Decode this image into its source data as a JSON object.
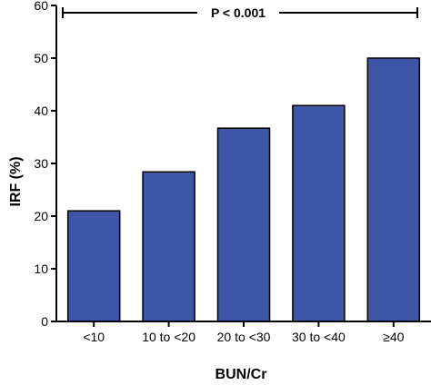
{
  "chart_data": {
    "type": "bar",
    "categories": [
      "<10",
      "10 to <20",
      "20 to <30",
      "30 to <40",
      "≥40"
    ],
    "values": [
      21,
      28.4,
      36.7,
      41,
      50
    ],
    "xlabel": "BUN/Cr",
    "ylabel": "IRF (%)",
    "ylim": [
      0,
      60
    ],
    "yticks": [
      0,
      10,
      20,
      30,
      40,
      50,
      60
    ],
    "annotation": "P < 0.001",
    "bar_color": "#3f55a8",
    "grid": false,
    "legend": "none"
  }
}
